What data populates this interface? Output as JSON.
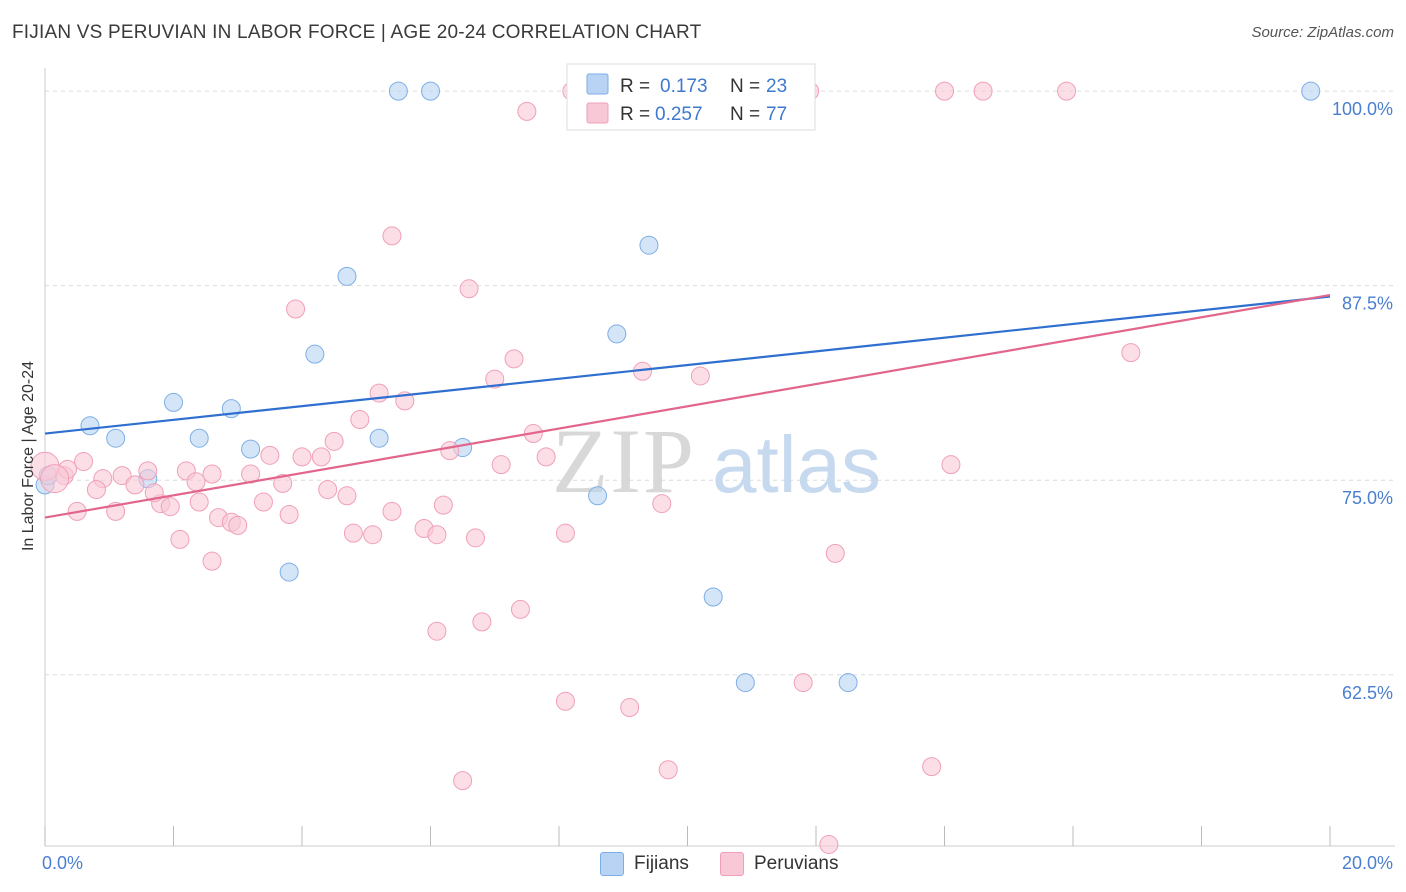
{
  "title": "FIJIAN VS PERUVIAN IN LABOR FORCE | AGE 20-24 CORRELATION CHART",
  "source": "Source: ZipAtlas.com",
  "watermark": {
    "zip": "ZIP",
    "atlas": "atlas"
  },
  "chart_data": {
    "type": "scatter",
    "ylabel": "In Labor Force | Age 20-24",
    "xlim": [
      0,
      20
    ],
    "ylim": [
      51.5,
      102
    ],
    "x_tick_labels": {
      "min": "0.0%",
      "max": "20.0%"
    },
    "y_ticks": [
      {
        "value": 100.0,
        "label": "100.0%"
      },
      {
        "value": 87.5,
        "label": "87.5%"
      },
      {
        "value": 75.0,
        "label": "75.0%"
      },
      {
        "value": 62.5,
        "label": "62.5%"
      }
    ],
    "series": [
      {
        "name": "Fijians",
        "color": "#7eaee6",
        "fill": "#b8d3f4",
        "line_color": "#2f6fd0",
        "R": "0.173",
        "N": "23",
        "trend": {
          "x0": 0,
          "y0": 78.0,
          "x1": 20,
          "y1": 86.8
        },
        "points": [
          [
            5.5,
            100.0
          ],
          [
            6.0,
            100.0
          ],
          [
            19.7,
            100.0
          ],
          [
            9.4,
            90.1
          ],
          [
            4.7,
            88.1
          ],
          [
            8.9,
            84.4
          ],
          [
            4.2,
            83.1
          ],
          [
            2.0,
            80.0
          ],
          [
            2.9,
            79.6
          ],
          [
            0.7,
            78.5
          ],
          [
            1.1,
            77.7
          ],
          [
            2.4,
            77.7
          ],
          [
            5.2,
            77.7
          ],
          [
            3.2,
            77.0
          ],
          [
            6.5,
            77.1
          ],
          [
            1.6,
            75.1
          ],
          [
            0.0,
            74.7
          ],
          [
            8.6,
            74.0
          ],
          [
            3.8,
            69.1
          ],
          [
            10.4,
            67.5
          ],
          [
            10.9,
            62.0
          ],
          [
            12.5,
            62.0
          ],
          [
            0.05,
            75.3
          ]
        ]
      },
      {
        "name": "Peruvians",
        "color": "#f0a0b8",
        "fill": "#f8c8d6",
        "line_color": "#e2668c",
        "R": "0.257",
        "N": "77",
        "trend": {
          "x0": 0,
          "y0": 72.6,
          "x1": 20,
          "y1": 86.9
        },
        "points": [
          [
            8.2,
            100.0
          ],
          [
            9.5,
            100.0
          ],
          [
            11.9,
            100.0
          ],
          [
            14.0,
            100.0
          ],
          [
            14.6,
            100.0
          ],
          [
            15.9,
            100.0
          ],
          [
            7.5,
            98.7
          ],
          [
            5.4,
            90.7
          ],
          [
            6.6,
            87.3
          ],
          [
            3.9,
            86.0
          ],
          [
            16.9,
            83.2
          ],
          [
            7.3,
            82.8
          ],
          [
            9.3,
            82.0
          ],
          [
            7.0,
            81.5
          ],
          [
            10.2,
            81.7
          ],
          [
            5.2,
            80.6
          ],
          [
            5.6,
            80.1
          ],
          [
            4.9,
            78.9
          ],
          [
            7.6,
            78.0
          ],
          [
            4.5,
            77.5
          ],
          [
            3.5,
            76.6
          ],
          [
            4.0,
            76.5
          ],
          [
            4.3,
            76.5
          ],
          [
            7.8,
            76.5
          ],
          [
            0.6,
            76.2
          ],
          [
            7.1,
            76.0
          ],
          [
            14.1,
            76.0
          ],
          [
            1.6,
            75.6
          ],
          [
            2.2,
            75.6
          ],
          [
            2.6,
            75.4
          ],
          [
            1.2,
            75.3
          ],
          [
            3.2,
            75.4
          ],
          [
            0.9,
            75.1
          ],
          [
            0.3,
            75.3
          ],
          [
            0.0,
            75.9
          ],
          [
            1.4,
            74.7
          ],
          [
            3.7,
            74.8
          ],
          [
            0.8,
            74.4
          ],
          [
            4.4,
            74.4
          ],
          [
            4.7,
            74.0
          ],
          [
            1.8,
            73.5
          ],
          [
            2.4,
            73.6
          ],
          [
            3.4,
            73.6
          ],
          [
            6.2,
            73.4
          ],
          [
            9.6,
            73.5
          ],
          [
            1.1,
            73.0
          ],
          [
            5.4,
            73.0
          ],
          [
            3.8,
            72.8
          ],
          [
            2.7,
            72.6
          ],
          [
            2.9,
            72.3
          ],
          [
            3.0,
            72.1
          ],
          [
            5.9,
            71.9
          ],
          [
            4.8,
            71.6
          ],
          [
            5.1,
            71.5
          ],
          [
            6.1,
            71.5
          ],
          [
            6.7,
            71.3
          ],
          [
            8.1,
            71.6
          ],
          [
            2.1,
            71.2
          ],
          [
            12.3,
            70.3
          ],
          [
            2.6,
            69.8
          ],
          [
            7.4,
            66.7
          ],
          [
            6.8,
            65.9
          ],
          [
            6.1,
            65.3
          ],
          [
            11.8,
            62.0
          ],
          [
            8.1,
            60.8
          ],
          [
            9.1,
            60.4
          ],
          [
            13.8,
            56.6
          ],
          [
            9.7,
            56.4
          ],
          [
            6.5,
            55.7
          ],
          [
            12.2,
            51.6
          ],
          [
            0.5,
            73.0
          ],
          [
            0.35,
            75.7
          ],
          [
            1.95,
            73.3
          ],
          [
            1.7,
            74.2
          ],
          [
            6.3,
            76.9
          ],
          [
            2.35,
            74.9
          ],
          [
            0.15,
            75.1
          ]
        ]
      }
    ]
  }
}
